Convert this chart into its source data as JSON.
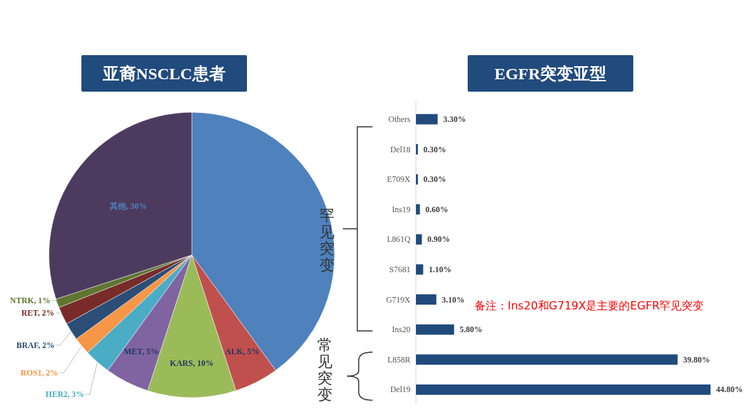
{
  "chart_data": [
    {
      "type": "pie",
      "title": "亚裔NSCLC患者",
      "categories": [
        null,
        "ALK",
        "KARS",
        "MET",
        "HER2",
        "ROS1",
        "BRAF",
        "RET",
        "NTRK",
        "其他"
      ],
      "values": [
        40,
        5,
        10,
        5,
        3,
        2,
        2,
        2,
        1,
        30
      ],
      "value_labels": [
        null,
        "5%",
        "10%",
        "5%",
        "3%",
        "2%",
        "2%",
        "2%",
        "1%",
        "30%"
      ],
      "colors": [
        "#4f81bd",
        "#c0504d",
        "#9bbb59",
        "#8064a2",
        "#4bacc6",
        "#f79646",
        "#2c4d75",
        "#772c2a",
        "#5f7530",
        "#4d3b5f"
      ]
    },
    {
      "type": "bar",
      "orientation": "horizontal",
      "title": "EGFR突变亚型",
      "categories": [
        "Others",
        "Del18",
        "E709X",
        "Ins19",
        "L861Q",
        "S7681",
        "G719X",
        "Ins20",
        "L858R",
        "Del19"
      ],
      "values": [
        3.3,
        0.3,
        0.3,
        0.6,
        0.9,
        1.1,
        3.1,
        5.8,
        39.8,
        44.8
      ],
      "value_labels": [
        "3.30%",
        "0.30%",
        "0.30%",
        "0.60%",
        "0.90%",
        "1.10%",
        "3.10%",
        "5.80%",
        "39.80%",
        "44.80%"
      ],
      "color": "#214a7d",
      "annotations": [
        "罕见突变",
        "常见突变",
        "备注：Ins20和G719X是主要的EGFR罕见突变"
      ]
    }
  ]
}
